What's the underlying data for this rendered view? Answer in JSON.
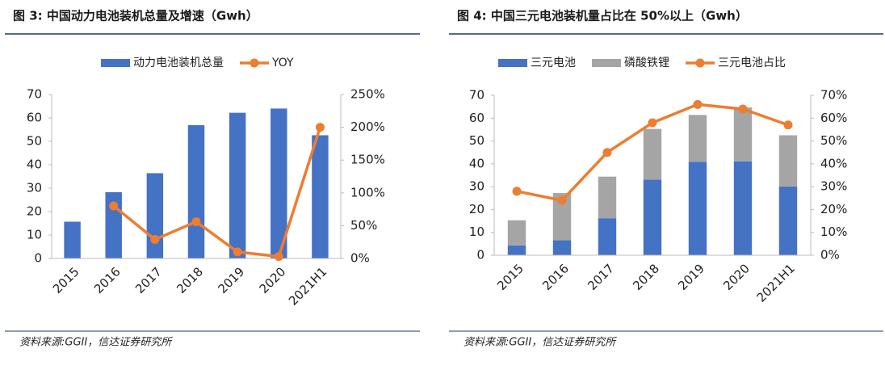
{
  "chart_data": [
    {
      "type": "bar",
      "title": "图 3:  中国动力电池装机总量及增速（Gwh）",
      "source": "资料来源:GGII，信达证券研究所",
      "categories": [
        "2015",
        "2016",
        "2017",
        "2018",
        "2019",
        "2020",
        "2021H1"
      ],
      "series": [
        {
          "name": "动力电池装机总量",
          "type": "bar",
          "color": "#4472c4",
          "values": [
            15.7,
            28.3,
            36.4,
            56.9,
            62.2,
            64,
            52.6
          ]
        },
        {
          "name": "YOY",
          "type": "line",
          "axis": "y2",
          "color": "#ed7d31",
          "values": [
            null,
            80,
            29,
            56,
            10,
            3,
            200
          ]
        }
      ],
      "ylim": [
        0,
        70
      ],
      "yticks": [
        0,
        10,
        20,
        30,
        40,
        50,
        60,
        70
      ],
      "y2lim": [
        0,
        250
      ],
      "y2ticks": [
        {
          "value": 0,
          "label": "0%"
        },
        {
          "value": 50,
          "label": "50%"
        },
        {
          "value": 100,
          "label": "100%"
        },
        {
          "value": 150,
          "label": "150%"
        },
        {
          "value": 200,
          "label": "200%"
        },
        {
          "value": 250,
          "label": "250%"
        }
      ]
    },
    {
      "type": "stacked_bar",
      "title": "图 4:  中国三元电池装机量占比在 50%以上（Gwh）",
      "source": "资料来源:GGII，信达证券研究所",
      "categories": [
        "2015",
        "2016",
        "2017",
        "2018",
        "2019",
        "2020",
        "2021H1"
      ],
      "series": [
        {
          "name": "三元电池",
          "type": "bar",
          "color": "#4472c4",
          "values": [
            4.3,
            6.6,
            16.2,
            33.1,
            40.9,
            41.1,
            30.1
          ]
        },
        {
          "name": "磷酸铁锂",
          "type": "bar",
          "color": "#a5a5a5",
          "values": [
            11,
            20.6,
            18.2,
            22.2,
            20.5,
            23.6,
            22.4
          ]
        },
        {
          "name": "三元电池占比",
          "type": "line",
          "axis": "y2",
          "color": "#ed7d31",
          "values": [
            28,
            24,
            45,
            58,
            66,
            64,
            57
          ]
        }
      ],
      "ylim": [
        0,
        70
      ],
      "yticks": [
        0,
        10,
        20,
        30,
        40,
        50,
        60,
        70
      ],
      "y2lim": [
        0,
        70
      ],
      "y2ticks": [
        {
          "value": 0,
          "label": "0%"
        },
        {
          "value": 10,
          "label": "10%"
        },
        {
          "value": 20,
          "label": "20%"
        },
        {
          "value": 30,
          "label": "30%"
        },
        {
          "value": 40,
          "label": "40%"
        },
        {
          "value": 50,
          "label": "50%"
        },
        {
          "value": 60,
          "label": "60%"
        },
        {
          "value": 70,
          "label": "70%"
        }
      ]
    }
  ]
}
